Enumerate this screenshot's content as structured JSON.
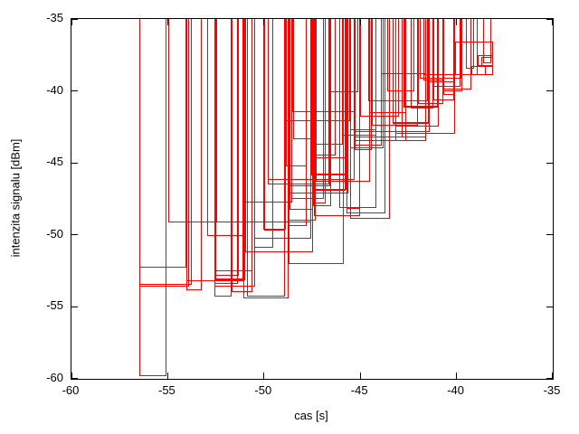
{
  "axes": {
    "xlabel": "cas [s]",
    "ylabel": "intenzita signalu [dBm]",
    "x_range": [
      -60,
      -35
    ],
    "y_range": [
      -60,
      -35
    ],
    "x_ticks": [
      "-60",
      "-55",
      "-50",
      "-45",
      "-40",
      "-35"
    ],
    "y_ticks": [
      "-35",
      "-40",
      "-45",
      "-50",
      "-55",
      "-60"
    ],
    "x_tick_values": [
      -60,
      -55,
      -50,
      -45,
      -40,
      -35
    ],
    "y_tick_values": [
      -35,
      -40,
      -45,
      -50,
      -55,
      -60
    ]
  },
  "colors": {
    "box_stroke": "#ff0000",
    "axis": "#000000",
    "text": "#000000",
    "background": "#ffffff"
  },
  "chart_data": {
    "type": "bar",
    "subtype": "overlapping-range-boxes",
    "title": "",
    "xlabel": "cas [s]",
    "ylabel": "intenzita signalu [dBm]",
    "xlim": [
      -60,
      -35
    ],
    "ylim": [
      -60,
      -35
    ],
    "grid": false,
    "legend": "none",
    "box_format": "[x_start, x_end, y_bottom, y_top?] ; y_top omitted = box extends above plot top (clipped at -35)",
    "boxes": [
      [
        -56.48,
        -55.07,
        -59.82
      ],
      [
        -56.48,
        -54.03,
        -52.28
      ],
      [
        -56.48,
        -53.75,
        -53.47
      ],
      [
        -56.48,
        -53.9,
        -53.62
      ],
      [
        -54.97,
        -50.98,
        -49.13
      ],
      [
        -54.03,
        -51.07,
        -53.22
      ],
      [
        -54.03,
        -53.22,
        -53.82
      ],
      [
        -52.95,
        -50.98,
        -50.08
      ],
      [
        -52.6,
        -50.6,
        -52.5
      ],
      [
        -52.6,
        -51.3,
        -52.82
      ],
      [
        -52.58,
        -51.0,
        -53.08
      ],
      [
        -52.55,
        -50.98,
        -53.14
      ],
      [
        -52.6,
        -51.35,
        -53.4
      ],
      [
        -52.6,
        -50.45,
        -53.62
      ],
      [
        -51.7,
        -50.6,
        -53.95
      ],
      [
        -52.6,
        -51.7,
        -54.25
      ],
      [
        -50.9,
        -48.9,
        -54.31
      ],
      [
        -51.07,
        -48.72,
        -54.4
      ],
      [
        -52.5,
        -47.53,
        -49.12
      ],
      [
        -50.98,
        -48.54,
        -47.77
      ],
      [
        -50.04,
        -48.85,
        -49.65
      ],
      [
        -50.0,
        -48.9,
        -49.72
      ],
      [
        -50.5,
        -47.53,
        -50.28
      ],
      [
        -50.5,
        -49.5,
        -50.9
      ],
      [
        -51.0,
        -47.45,
        -51.22
      ],
      [
        -48.73,
        -45.85,
        -52.05
      ],
      [
        -48.5,
        -47.45,
        -43.37
      ],
      [
        -48.55,
        -45.3,
        -41.45
      ],
      [
        -48.95,
        -45.5,
        -42.1
      ],
      [
        -46.55,
        -45.1,
        -40.08
      ],
      [
        -48.85,
        -47.8,
        -45.25
      ],
      [
        -49.8,
        -45.3,
        -46.18
      ],
      [
        -49.8,
        -46.6,
        -46.48
      ],
      [
        -47.55,
        -45.75,
        -45.78
      ],
      [
        -47.55,
        -45.72,
        -45.85
      ],
      [
        -47.5,
        -45.7,
        -46.85
      ],
      [
        -47.5,
        -45.75,
        -46.95
      ],
      [
        -47.45,
        -46.5,
        -48.0
      ],
      [
        -47.4,
        -45.0,
        -48.7
      ],
      [
        -48.7,
        -47.45,
        -48.28
      ],
      [
        -47.45,
        -45.9,
        -43.7
      ],
      [
        -47.3,
        -44.5,
        -46.3
      ],
      [
        -48.73,
        -46.55,
        -46.6
      ],
      [
        -48.73,
        -45.6,
        -47.1
      ],
      [
        -48.6,
        -46.9,
        -47.48
      ],
      [
        -47.4,
        -46.8,
        -47.8
      ],
      [
        -46.1,
        -44.15,
        -48.1
      ],
      [
        -48.73,
        -47.3,
        -48.98
      ],
      [
        -48.73,
        -47.8,
        -49.35
      ],
      [
        -47.45,
        -46.3,
        -44.5
      ],
      [
        -47.45,
        -45.7,
        -44.7
      ],
      [
        -45.55,
        -44.15,
        -42.75
      ],
      [
        -45.9,
        -44.15,
        -43.08
      ],
      [
        -45.55,
        -43.8,
        -44.0
      ],
      [
        -45.3,
        -44.4,
        -44.1
      ],
      [
        -45.3,
        -41.4,
        -42.85
      ],
      [
        -45.3,
        -42.8,
        -43.2
      ],
      [
        -45.3,
        -42.6,
        -43.5
      ],
      [
        -45.3,
        -43.9,
        -43.8
      ],
      [
        -45.7,
        -45.0,
        -48.2
      ],
      [
        -45.7,
        -43.7,
        -48.5
      ],
      [
        -45.55,
        -43.45,
        -48.9
      ],
      [
        -44.6,
        -41.5,
        -40.7
      ],
      [
        -43.6,
        -42.2,
        -40.0
      ],
      [
        -40.7,
        -39.7,
        -40.0
      ],
      [
        -42.7,
        -40.9,
        -41.1
      ],
      [
        -42.75,
        -40.95,
        -41.15
      ],
      [
        -44.55,
        -42.6,
        -41.5
      ],
      [
        -45.0,
        -43.0,
        -41.8
      ],
      [
        -43.3,
        -41.4,
        -42.2
      ],
      [
        -43.32,
        -41.42,
        -42.26
      ],
      [
        -44.4,
        -42.0,
        -42.4
      ],
      [
        -43.2,
        -40.1,
        -43.0
      ],
      [
        -43.2,
        -40.9,
        -42.45
      ],
      [
        -43.2,
        -41.6,
        -43.2
      ],
      [
        -43.2,
        -41.6,
        -43.5
      ],
      [
        -43.95,
        -41.6,
        -38.8
      ],
      [
        -41.7,
        -40.7,
        -39.28
      ],
      [
        -41.9,
        -39.75,
        -39.15
      ],
      [
        -41.5,
        -40.1,
        -39.42
      ],
      [
        -41.2,
        -39.8,
        -39.7
      ],
      [
        -40.7,
        -39.25,
        -39.92
      ],
      [
        -40.7,
        -40.1,
        -40.28
      ],
      [
        -41.2,
        -40.1,
        -40.65
      ],
      [
        -42.0,
        -40.7,
        -40.9
      ],
      [
        -42.4,
        -41.2,
        -41.2
      ],
      [
        -41.7,
        -38.9,
        -38.87
      ],
      [
        -41.72,
        -38.92,
        -38.92
      ],
      [
        -39.5,
        -39.1,
        -38.45
      ],
      [
        -38.6,
        -38.2,
        -38.05
      ],
      [
        -40.1,
        -38.1,
        -38.87,
        -36.57
      ],
      [
        -38.9,
        -38.1,
        -38.25,
        -37.5
      ],
      [
        -38.7,
        -38.1,
        -38.35,
        -37.62
      ],
      [
        -39.25,
        -38.5,
        -38.87,
        -38.25
      ]
    ]
  }
}
